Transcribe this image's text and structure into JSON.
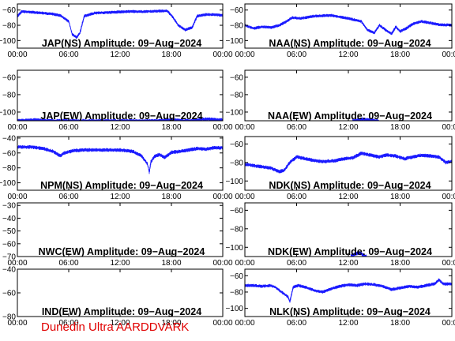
{
  "footer": {
    "credit": "Dunedin Ultra AARDDVARK"
  },
  "colors": {
    "trace": "#1a1aff",
    "axes": "#000000",
    "credit": "#e00000"
  },
  "chart_data": [
    {
      "type": "line",
      "title": "JAP(NS) Amplitude: 09-Aug-2024",
      "xlim": [
        0,
        24
      ],
      "ylim": [
        -110,
        -52
      ],
      "yticks": [
        -60,
        -80,
        -100
      ],
      "xticks": [
        0,
        6,
        12,
        18,
        24
      ],
      "xticklabels": [
        "00:00",
        "06:00",
        "12:00",
        "18:00",
        "00:00"
      ],
      "series": [
        {
          "x": [
            0,
            0.5,
            2,
            4,
            5,
            6,
            6.4,
            6.9,
            7.3,
            7.8,
            9,
            11,
            13,
            15,
            17.5,
            18.2,
            18.8,
            19.6,
            20.4,
            21,
            22,
            23,
            24
          ],
          "y": [
            -68,
            -62,
            -63,
            -65,
            -67,
            -75,
            -92,
            -96,
            -90,
            -68,
            -64,
            -63,
            -62,
            -62,
            -61,
            -70,
            -80,
            -86,
            -83,
            -68,
            -66,
            -66,
            -67
          ]
        }
      ]
    },
    {
      "type": "line",
      "title": "NAA(NS) Amplitude: 09-Aug-2024",
      "xlim": [
        0,
        24
      ],
      "ylim": [
        -110,
        -52
      ],
      "yticks": [
        -60,
        -80,
        -100
      ],
      "xticks": [
        0,
        6,
        12,
        18,
        24
      ],
      "xticklabels": [
        "00:00",
        "06:00",
        "12:00",
        "18:00",
        "00:00"
      ],
      "series": [
        {
          "x": [
            0,
            1,
            2,
            3,
            4,
            4.8,
            5.5,
            6.5,
            8,
            10,
            12,
            13.5,
            14.2,
            15,
            15.6,
            16.3,
            17,
            17.5,
            18,
            18.7,
            19.5,
            20.5,
            21.5,
            22.5,
            24
          ],
          "y": [
            -80,
            -84,
            -82,
            -83,
            -80,
            -75,
            -70,
            -71,
            -68,
            -67,
            -71,
            -75,
            -86,
            -90,
            -80,
            -86,
            -91,
            -82,
            -88,
            -84,
            -78,
            -75,
            -77,
            -79,
            -80
          ]
        }
      ]
    },
    {
      "type": "line",
      "title": "JAP(EW) Amplitude: 09-Aug-2024",
      "xlim": [
        0,
        24
      ],
      "ylim": [
        -110,
        -52
      ],
      "yticks": [
        -60,
        -80,
        -100
      ],
      "xticks": [
        0,
        6,
        12,
        18,
        24
      ],
      "xticklabels": [
        "00:00",
        "06:00",
        "12:00",
        "18:00",
        "00:00"
      ],
      "series": [
        {
          "x": [
            0,
            2,
            4,
            6,
            8,
            10,
            12,
            14,
            16,
            18,
            20,
            22,
            24
          ],
          "y": [
            -110,
            -109,
            -110,
            -110,
            -110,
            -110,
            -110,
            -110,
            -110,
            -109,
            -110,
            -108,
            -109
          ]
        }
      ]
    },
    {
      "type": "line",
      "title": "NAA(EW) Amplitude: 09-Aug-2024",
      "xlim": [
        0,
        24
      ],
      "ylim": [
        -110,
        -52
      ],
      "yticks": [
        -60,
        -80,
        -100
      ],
      "xticks": [
        0,
        6,
        12,
        18,
        24
      ],
      "xticklabels": [
        "00:00",
        "06:00",
        "12:00",
        "18:00",
        "00:00"
      ],
      "series": [
        {
          "x": [
            12.5,
            13.5,
            14.5,
            15.5
          ],
          "y": [
            -110,
            -108,
            -109,
            -110
          ]
        }
      ]
    },
    {
      "type": "line",
      "title": "NPM(NS) Amplitude: 09-Aug-2024",
      "xlim": [
        0,
        24
      ],
      "ylim": [
        -110,
        -38
      ],
      "yticks": [
        -40,
        -60,
        -80,
        -100
      ],
      "xticks": [
        0,
        6,
        12,
        18,
        24
      ],
      "xticklabels": [
        "00:00",
        "06:00",
        "12:00",
        "18:00",
        "00:00"
      ],
      "series": [
        {
          "x": [
            0,
            1.5,
            3,
            4.2,
            5,
            5.5,
            6.5,
            8,
            10,
            12,
            13.5,
            14.5,
            15.2,
            15.4,
            15.6,
            16,
            16.6,
            17.2,
            18,
            19,
            20,
            21,
            22,
            23,
            24
          ],
          "y": [
            -52,
            -52,
            -54,
            -58,
            -64,
            -60,
            -57,
            -56,
            -56,
            -56,
            -58,
            -64,
            -75,
            -86,
            -72,
            -65,
            -62,
            -66,
            -59,
            -58,
            -56,
            -54,
            -55,
            -53,
            -53
          ]
        }
      ]
    },
    {
      "type": "line",
      "title": "NDK(NS) Amplitude: 09-Aug-2024",
      "xlim": [
        0,
        24
      ],
      "ylim": [
        -110,
        -52
      ],
      "yticks": [
        -60,
        -80,
        -100
      ],
      "xticks": [
        0,
        6,
        12,
        18,
        24
      ],
      "xticklabels": [
        "00:00",
        "06:00",
        "12:00",
        "18:00",
        "00:00"
      ],
      "series": [
        {
          "x": [
            0,
            1.5,
            3,
            4,
            4.6,
            5.2,
            6,
            7.5,
            9,
            10.5,
            11.5,
            12.5,
            13.5,
            14.5,
            15.5,
            16.5,
            17.5,
            18.5,
            19.5,
            20.5,
            21.5,
            22.5,
            23.3,
            24
          ],
          "y": [
            -82,
            -84,
            -86,
            -90,
            -88,
            -80,
            -74,
            -77,
            -79,
            -78,
            -76,
            -75,
            -70,
            -72,
            -74,
            -72,
            -73,
            -76,
            -74,
            -72,
            -73,
            -74,
            -80,
            -79
          ]
        }
      ]
    },
    {
      "type": "line",
      "title": "NWC(EW) Amplitude: 09-Aug-2024",
      "xlim": [
        0,
        24
      ],
      "ylim": [
        -70,
        -28
      ],
      "yticks": [
        -30,
        -40,
        -50,
        -60,
        -70
      ],
      "xticks": [
        0,
        6,
        12,
        18,
        24
      ],
      "xticklabels": [
        "00:00",
        "06:00",
        "12:00",
        "18:00",
        "00:00"
      ],
      "series": [
        {
          "x": [],
          "y": []
        }
      ]
    },
    {
      "type": "line",
      "title": "NDK(EW) Amplitude: 09-Aug-2024",
      "xlim": [
        0,
        24
      ],
      "ylim": [
        -110,
        -52
      ],
      "yticks": [
        -60,
        -80,
        -100
      ],
      "xticks": [
        0,
        6,
        12,
        18,
        24
      ],
      "xticklabels": [
        "00:00",
        "06:00",
        "12:00",
        "18:00",
        "00:00"
      ],
      "series": [
        {
          "x": [
            12.3,
            13.2,
            14.1
          ],
          "y": [
            -109,
            -106,
            -110
          ]
        }
      ]
    },
    {
      "type": "line",
      "title": "IND(EW) Amplitude: 09-Aug-2024",
      "xlim": [
        0,
        24
      ],
      "ylim": [
        -80,
        -40
      ],
      "yticks": [
        -40,
        -60,
        -80
      ],
      "xticks": [
        0,
        6,
        12,
        18,
        24
      ],
      "xticklabels": [
        "00:00",
        "06:00",
        "12:00",
        "18:00",
        "00:00"
      ],
      "series": [
        {
          "x": [],
          "y": []
        }
      ]
    },
    {
      "type": "line",
      "title": "NLK(NS) Amplitude: 09-Aug-2024",
      "xlim": [
        0,
        24
      ],
      "ylim": [
        -110,
        -52
      ],
      "yticks": [
        -60,
        -80,
        -100
      ],
      "xticks": [
        0,
        6,
        12,
        18,
        24
      ],
      "xticklabels": [
        "00:00",
        "06:00",
        "12:00",
        "18:00",
        "00:00"
      ],
      "series": [
        {
          "x": [
            0,
            1,
            2,
            3,
            3.5,
            4,
            4.5,
            5,
            5.2,
            5.6,
            6.2,
            7,
            8,
            9,
            10,
            11,
            12,
            13,
            14,
            15,
            16,
            17,
            18,
            19,
            20,
            21,
            22,
            22.5,
            23,
            23.5,
            24
          ],
          "y": [
            -72,
            -72,
            -73,
            -72,
            -74,
            -78,
            -82,
            -86,
            -92,
            -74,
            -72,
            -74,
            -78,
            -80,
            -76,
            -73,
            -71,
            -72,
            -70,
            -71,
            -73,
            -77,
            -75,
            -73,
            -74,
            -72,
            -70,
            -65,
            -70,
            -70,
            -70
          ]
        }
      ]
    }
  ]
}
